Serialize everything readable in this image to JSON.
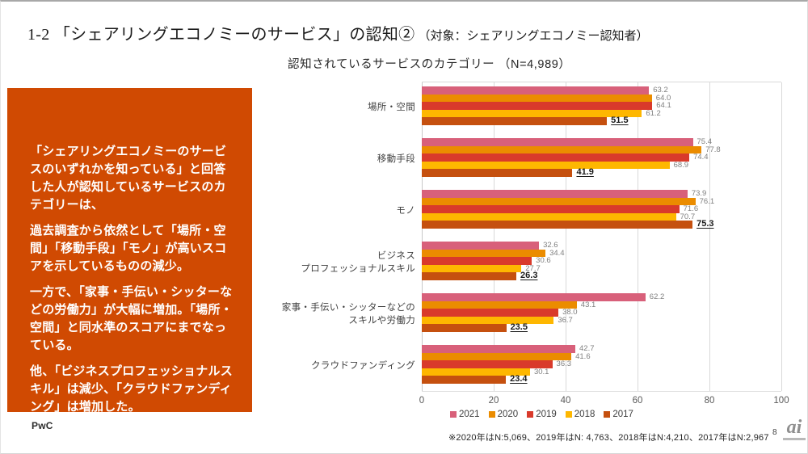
{
  "slide": {
    "title_main": "1-2 「シェアリングエコノミーのサービス」の認知②",
    "title_target": "（対象：シェアリングエコノミー認知者）",
    "footnote": "※2020年はN:5,069、2019年はN: 4,763、2018年はN:4,210、2017年はN:2,967",
    "page_number": "8",
    "pwc_logo_text": "PwC",
    "watermark_text": "ai"
  },
  "commentary": {
    "background_color": "#D04A02",
    "paragraphs": [
      "「シェアリングエコノミーのサービスのいずれかを知っている」と回答した人が認知しているサービスのカテゴリーは、",
      "過去調査から依然として「場所・空間」「移動手段」「モノ」が高いスコアを示しているものの減少。",
      "一方で、「家事・手伝い・シッターなどの労働力」が大幅に増加。「場所・空間」と同水準のスコアにまでなっている。",
      "他、「ビジネスプロフェッショナルスキル」は減少、「クラウドファンディング」は増加した。"
    ]
  },
  "chart_data": {
    "type": "bar",
    "orientation": "horizontal",
    "title": "認知されているサービスのカテゴリー （N=4,989）",
    "categories": [
      [
        "場所・空間"
      ],
      [
        "移動手段"
      ],
      [
        "モノ"
      ],
      [
        "ビジネス",
        "プロフェッショナルスキル"
      ],
      [
        "家事・手伝い・シッターなどの",
        "スキルや労働力"
      ],
      [
        "クラウドファンディング"
      ]
    ],
    "series": [
      {
        "name": "2021",
        "color": "#D8607A",
        "emphasized": false,
        "values": [
          63.2,
          75.4,
          73.9,
          32.6,
          62.2,
          42.7
        ]
      },
      {
        "name": "2020",
        "color": "#EB8C00",
        "emphasized": false,
        "values": [
          64.0,
          77.8,
          76.1,
          34.4,
          43.1,
          41.6
        ]
      },
      {
        "name": "2019",
        "color": "#D93A2B",
        "emphasized": false,
        "values": [
          64.1,
          74.4,
          71.6,
          30.6,
          38.0,
          36.3
        ]
      },
      {
        "name": "2018",
        "color": "#FEB700",
        "emphasized": false,
        "values": [
          61.2,
          68.9,
          70.7,
          27.7,
          36.7,
          30.1
        ]
      },
      {
        "name": "2017",
        "color": "#C5500F",
        "emphasized": true,
        "values": [
          51.5,
          41.9,
          75.3,
          26.3,
          23.5,
          23.4
        ]
      }
    ],
    "xlim": [
      0,
      100
    ],
    "xticks": [
      0,
      20,
      40,
      60,
      80,
      100
    ],
    "grid": true,
    "legend_position": "bottom",
    "value_labels": true
  }
}
